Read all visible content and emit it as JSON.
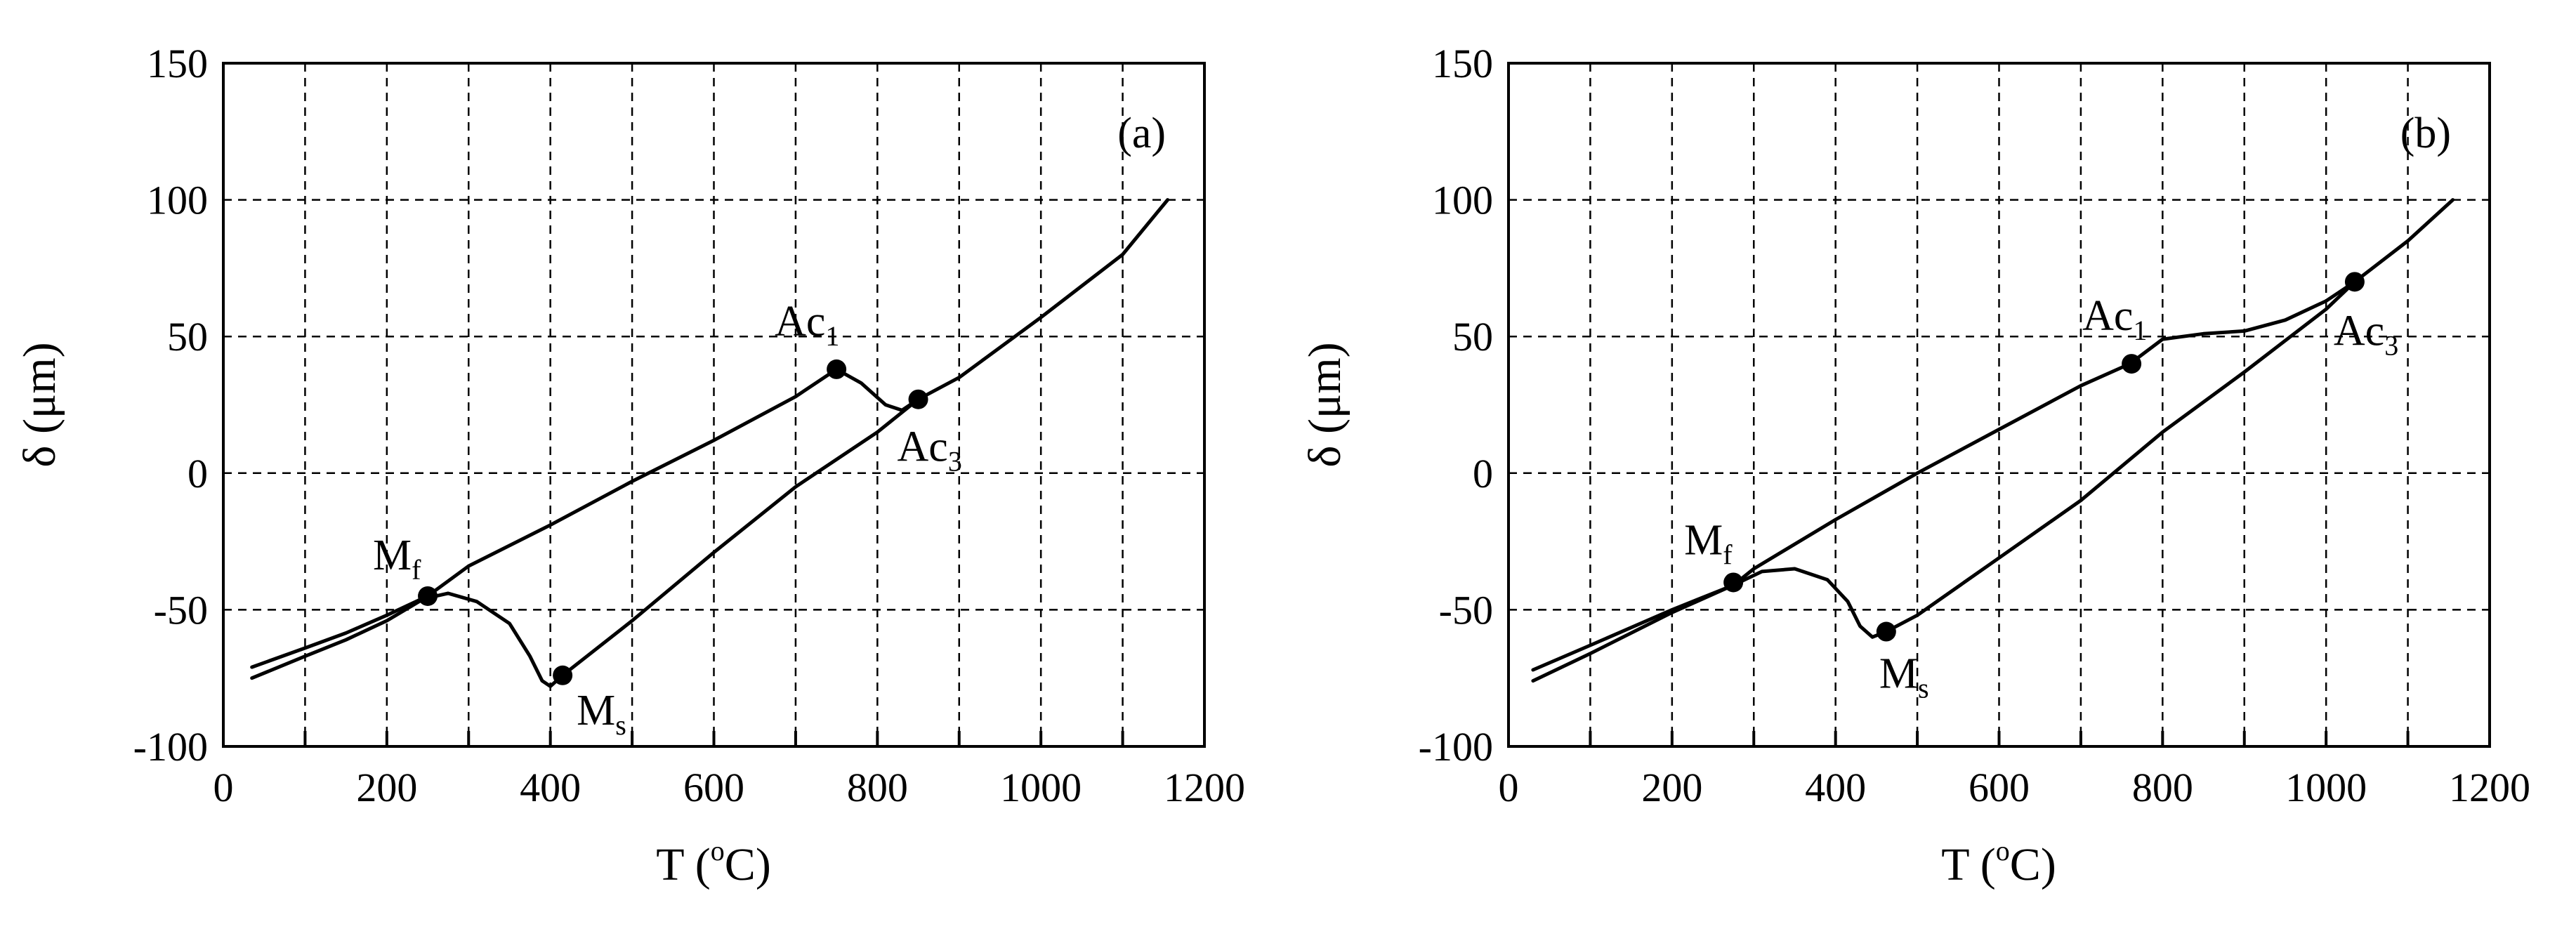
{
  "chart_data": [
    {
      "type": "line",
      "panel_label": "(a)",
      "xlabel": "T (oC)",
      "ylabel": "δ (μm)",
      "xlim": [
        0,
        1200
      ],
      "ylim": [
        -100,
        150
      ],
      "xticks": [
        "0",
        "200",
        "400",
        "600",
        "800",
        "1000",
        "1200"
      ],
      "yticks": [
        "-100",
        "-50",
        "0",
        "50",
        "100",
        "150"
      ],
      "grid": true,
      "series": [
        {
          "values": [
            [
              35,
              -71
            ],
            [
              100,
              -64
            ],
            [
              150,
              -58.5
            ],
            [
              200,
              -52
            ],
            [
              250,
              -45
            ],
            [
              300,
              -34
            ],
            [
              400,
              -19
            ],
            [
              500,
              -3
            ],
            [
              600,
              12
            ],
            [
              700,
              28
            ],
            [
              750,
              38
            ],
            [
              780,
              33
            ],
            [
              810,
              25
            ],
            [
              830,
              23
            ],
            [
              850,
              27
            ]
          ]
        },
        {
          "values": [
            [
              850,
              27
            ],
            [
              900,
              35
            ],
            [
              1000,
              57
            ],
            [
              1100,
              80
            ],
            [
              1155,
              100
            ]
          ]
        },
        {
          "values": [
            [
              35,
              -75
            ],
            [
              100,
              -67
            ],
            [
              150,
              -61
            ],
            [
              200,
              -54
            ],
            [
              245,
              -46
            ],
            [
              275,
              -44
            ],
            [
              310,
              -47
            ],
            [
              350,
              -55
            ],
            [
              375,
              -67
            ],
            [
              390,
              -76
            ],
            [
              400,
              -78
            ],
            [
              415,
              -74
            ],
            [
              500,
              -54
            ],
            [
              600,
              -29
            ],
            [
              700,
              -5
            ],
            [
              800,
              15
            ],
            [
              850,
              27
            ]
          ]
        }
      ],
      "annotations": [
        {
          "label": "M",
          "sub": "f",
          "x": 250,
          "y": -45
        },
        {
          "label": "M",
          "sub": "s",
          "x": 415,
          "y": -74
        },
        {
          "label": "Ac",
          "sub": "1",
          "x": 750,
          "y": 38
        },
        {
          "label": "Ac",
          "sub": "3",
          "x": 850,
          "y": 27
        }
      ]
    },
    {
      "type": "line",
      "panel_label": "(b)",
      "xlabel": "T (oC)",
      "ylabel": "δ (μm)",
      "xlim": [
        0,
        1200
      ],
      "ylim": [
        -100,
        150
      ],
      "xticks": [
        "0",
        "200",
        "400",
        "600",
        "800",
        "1000",
        "1200"
      ],
      "yticks": [
        "-100",
        "-50",
        "0",
        "50",
        "100",
        "150"
      ],
      "grid": true,
      "series": [
        {
          "values": [
            [
              30,
              -72
            ],
            [
              100,
              -63
            ],
            [
              200,
              -50
            ],
            [
              275,
              -41
            ],
            [
              300,
              -35
            ],
            [
              400,
              -17
            ],
            [
              500,
              0
            ],
            [
              600,
              16
            ],
            [
              700,
              32
            ],
            [
              760,
              40
            ],
            [
              800,
              49
            ],
            [
              850,
              51
            ],
            [
              900,
              52
            ],
            [
              950,
              56
            ],
            [
              1000,
              63
            ],
            [
              1035,
              70
            ]
          ]
        },
        {
          "values": [
            [
              1035,
              70
            ],
            [
              1100,
              85
            ],
            [
              1155,
              100
            ]
          ]
        },
        {
          "values": [
            [
              30,
              -76
            ],
            [
              100,
              -66
            ],
            [
              200,
              -51
            ],
            [
              275,
              -41
            ],
            [
              310,
              -36
            ],
            [
              350,
              -35
            ],
            [
              390,
              -39
            ],
            [
              415,
              -47
            ],
            [
              430,
              -56
            ],
            [
              445,
              -60
            ],
            [
              462,
              -58
            ],
            [
              500,
              -52
            ],
            [
              600,
              -31
            ],
            [
              700,
              -10
            ],
            [
              800,
              15
            ],
            [
              900,
              37
            ],
            [
              1000,
              60
            ],
            [
              1035,
              70
            ]
          ]
        }
      ],
      "annotations": [
        {
          "label": "M",
          "sub": "f",
          "x": 275,
          "y": -40
        },
        {
          "label": "M",
          "sub": "s",
          "x": 462,
          "y": -58
        },
        {
          "label": "Ac",
          "sub": "1",
          "x": 762,
          "y": 40
        },
        {
          "label": "Ac",
          "sub": "3",
          "x": 1035,
          "y": 70
        }
      ]
    }
  ]
}
